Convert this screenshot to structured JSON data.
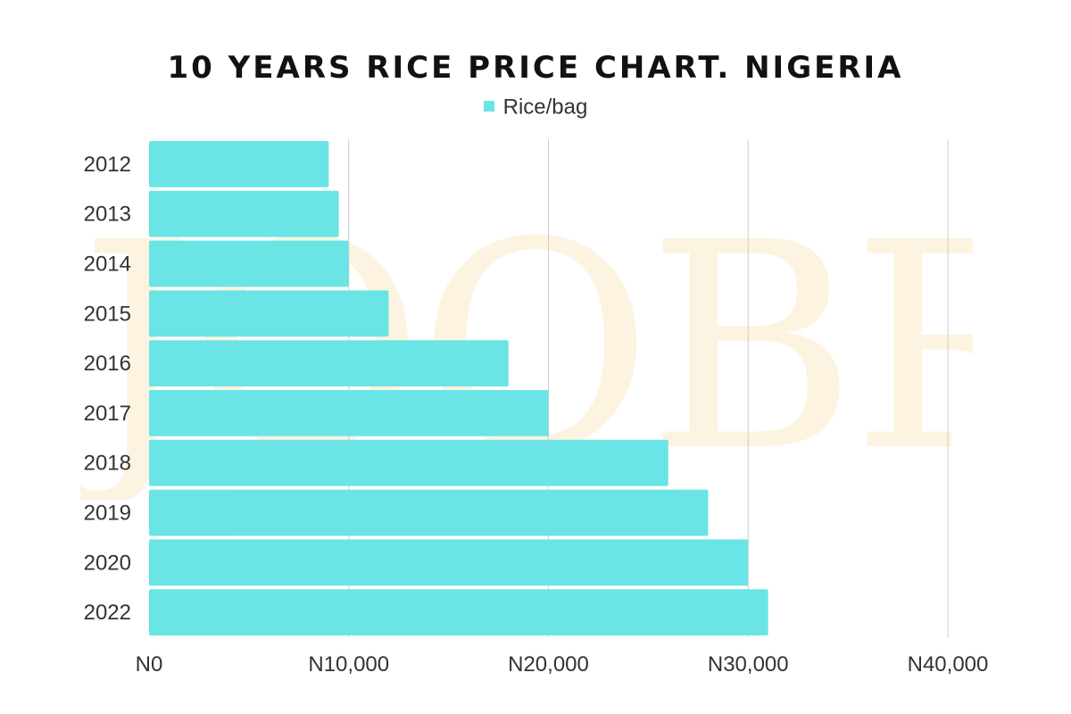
{
  "title": "10 YEARS RICE PRICE CHART. NIGERIA",
  "legend": {
    "label": "Rice/bag",
    "color": "#6ae4e4"
  },
  "watermark": "JOOBRE",
  "colors": {
    "bar": "#6ae4e4",
    "grid": "#cccccc",
    "watermark": "#fdf3e1"
  },
  "chart_data": {
    "type": "bar",
    "orientation": "horizontal",
    "title": "10 YEARS RICE PRICE CHART. NIGERIA",
    "categories": [
      "2012",
      "2013",
      "2014",
      "2015",
      "2016",
      "2017",
      "2018",
      "2019",
      "2020",
      "2022"
    ],
    "series": [
      {
        "name": "Rice/bag",
        "values": [
          9000,
          9500,
          10000,
          12000,
          18000,
          20000,
          26000,
          28000,
          30000,
          31000
        ]
      }
    ],
    "xlim": [
      0,
      40000
    ],
    "xticks": [
      0,
      10000,
      20000,
      30000,
      40000
    ],
    "xtick_labels": [
      "N0",
      "N10,000",
      "N20,000",
      "N30,000",
      "N40,000"
    ],
    "xlabel": "",
    "ylabel": "",
    "grid": true,
    "legend_position": "top-center"
  }
}
